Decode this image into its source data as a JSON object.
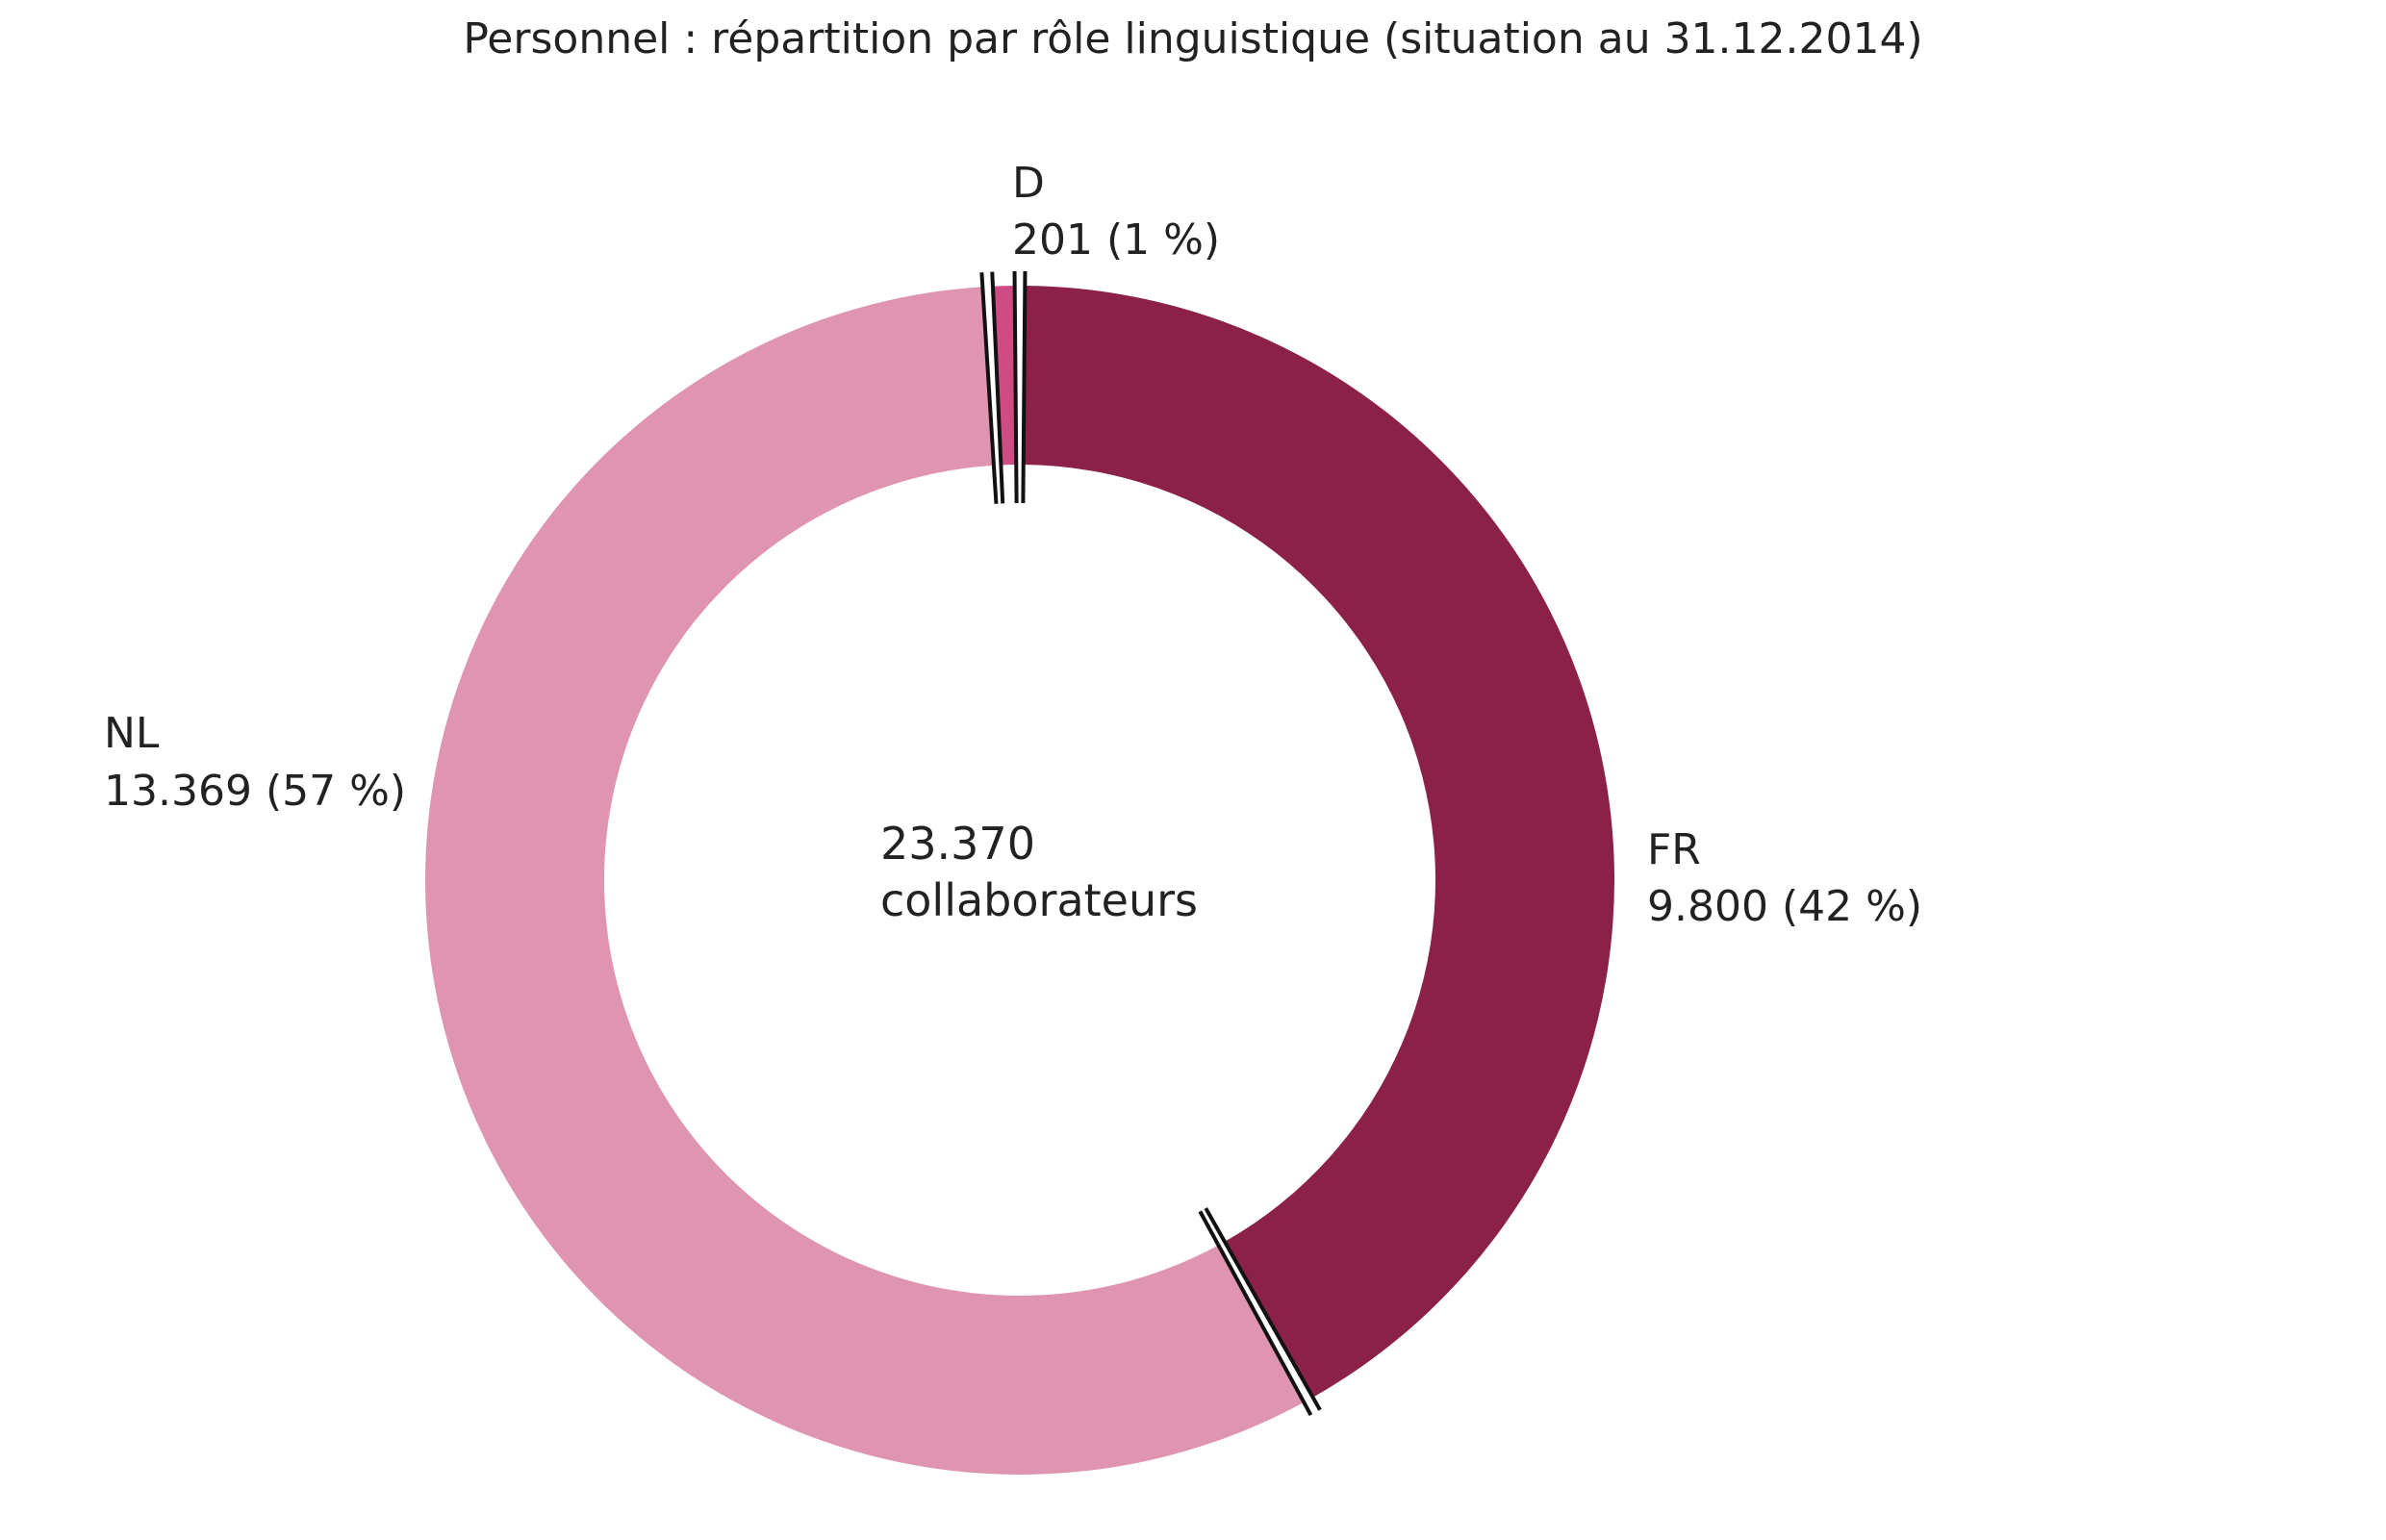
{
  "chart_data": {
    "type": "pie",
    "variant": "donut",
    "title": "Personnel : répartition par rôle linguistique (situation au 31.12.2014)",
    "center_label": {
      "line1": "23.370",
      "line2": "collaborateurs"
    },
    "slices": [
      {
        "name": "FR",
        "value": 9800,
        "value_label": "9.800 (42 %)",
        "color": "#8b2049"
      },
      {
        "name": "NL",
        "value": 13369,
        "value_label": "13.369 (57 %)",
        "color": "#df95b1"
      },
      {
        "name": "D",
        "value": 201,
        "value_label": "201 (1 %)",
        "color": "#cf4b83"
      }
    ],
    "start_angle_deg": 90,
    "direction": "clockwise",
    "break_marks": true,
    "legend": "none"
  }
}
